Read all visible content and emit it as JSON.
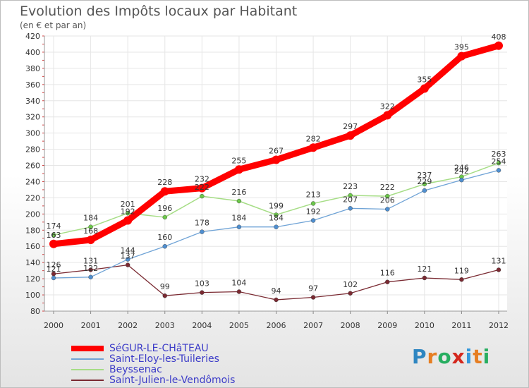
{
  "title": "Evolution des Impôts locaux par Habitant",
  "subtitle": "(en € et par an)",
  "logo": {
    "text": "Proxiti",
    "letter_colors": [
      "#2e86c1",
      "#e67e22",
      "#27ae60",
      "#d4281e",
      "#3498db",
      "#e67e22",
      "#27ae60"
    ]
  },
  "chart_data": {
    "type": "line",
    "x": [
      "2000",
      "2001",
      "2002",
      "2003",
      "2004",
      "2005",
      "2006",
      "2007",
      "2008",
      "2009",
      "2010",
      "2011",
      "2012"
    ],
    "ylim": [
      80,
      420
    ],
    "yticks": [
      80,
      100,
      120,
      140,
      160,
      180,
      200,
      220,
      240,
      260,
      280,
      300,
      320,
      340,
      360,
      380,
      400,
      420
    ],
    "grid": true,
    "legend_position": "bottom-left",
    "series": [
      {
        "name": "SéGUR-LE-CHâTEAU",
        "color": "#ff0000",
        "width": 9,
        "marker": "#ff0000",
        "marker_r": 6,
        "values": [
          163,
          168,
          192,
          228,
          232,
          255,
          267,
          282,
          297,
          322,
          355,
          395,
          408
        ],
        "labels": [
          "163",
          "168",
          "192",
          "228",
          "232",
          "255",
          "267",
          "282",
          "297",
          "322",
          "355",
          "395",
          "408"
        ]
      },
      {
        "name": "Saint-Eloy-les-Tuileries",
        "color": "#6fa3d6",
        "width": 1.3,
        "marker": "#4f8fd0",
        "marker_r": 3,
        "values": [
          121,
          122,
          144,
          160,
          178,
          184,
          184,
          192,
          207,
          206,
          229,
          242,
          254
        ],
        "labels": [
          "121",
          "122",
          "144",
          "160",
          "178",
          "184",
          "184",
          "192",
          "207",
          "206",
          "229",
          "242",
          "254"
        ]
      },
      {
        "name": "Beyssenac",
        "color": "#a6dd86",
        "width": 1.5,
        "marker": "#6cc84a",
        "marker_r": 3,
        "values": [
          174,
          184,
          201,
          196,
          222,
          216,
          199,
          213,
          223,
          222,
          237,
          246,
          263
        ],
        "labels": [
          "174",
          "184",
          "201",
          "196",
          "222",
          "216",
          "199",
          "213",
          "223",
          "222",
          "237",
          "246",
          "263"
        ]
      },
      {
        "name": "Saint-Julien-le-Vendômois",
        "color": "#7a2a32",
        "width": 1.3,
        "marker": "#7a2a32",
        "marker_r": 3,
        "values": [
          126,
          131,
          137,
          99,
          103,
          104,
          94,
          97,
          102,
          116,
          121,
          119,
          131
        ],
        "labels": [
          "126",
          "131",
          "137",
          "99",
          "103",
          "104",
          "94",
          "97",
          "102",
          "116",
          "121",
          "119",
          "131"
        ]
      }
    ]
  }
}
